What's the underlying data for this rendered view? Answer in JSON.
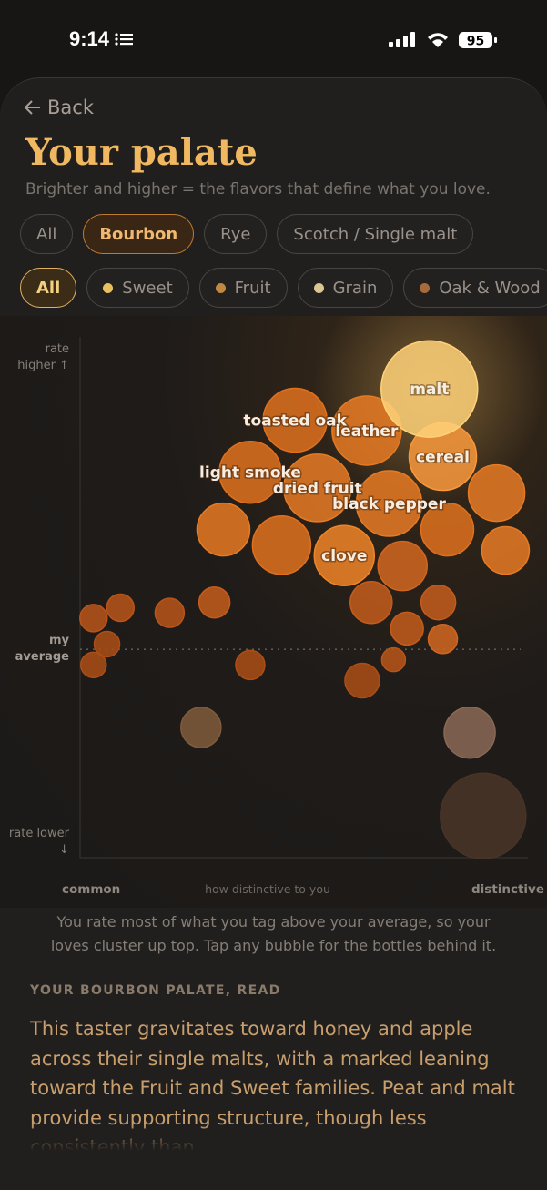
{
  "status_bar": {
    "time": "9:14",
    "battery": "95"
  },
  "header": {
    "back": "Back",
    "title": "Your palate",
    "subtitle": "Brighter and higher = the flavors that define what you love."
  },
  "filters": {
    "spirits": [
      {
        "label": "All"
      },
      {
        "label": "Bourbon",
        "active": true
      },
      {
        "label": "Rye"
      },
      {
        "label": "Scotch / Single malt"
      }
    ],
    "families": [
      {
        "label": "All",
        "active": true
      },
      {
        "label": "Sweet",
        "color": "#e8c060"
      },
      {
        "label": "Fruit",
        "color": "#c08840"
      },
      {
        "label": "Grain",
        "color": "#dcc494"
      },
      {
        "label": "Oak & Wood",
        "color": "#a86a3a"
      }
    ]
  },
  "chart_data": {
    "type": "bubble",
    "xlabel": "how distinctive to you",
    "xlim": [
      0,
      100
    ],
    "ylim": [
      0,
      100
    ],
    "xticks": [
      {
        "value": 0,
        "label": "common"
      },
      {
        "value": 100,
        "label": "distinctive"
      }
    ],
    "yticks": [
      {
        "value": 96,
        "label": "rate higher ↑"
      },
      {
        "value": 3,
        "label": "rate lower ↓"
      }
    ],
    "reference_line": {
      "value": 40,
      "label": "my average"
    },
    "points": [
      {
        "x": 90,
        "y": 8,
        "size": 47,
        "color": "#3a2a1f"
      },
      {
        "x": 87,
        "y": 24,
        "size": 28,
        "color": "#6e5444"
      },
      {
        "x": 27,
        "y": 25,
        "size": 22,
        "color": "#66492f"
      },
      {
        "x": 93,
        "y": 70,
        "size": 31,
        "color": "#b8621c"
      },
      {
        "x": 32,
        "y": 63,
        "size": 29,
        "color": "#b8621c"
      },
      {
        "x": 45,
        "y": 60,
        "size": 32,
        "color": "#b35a18"
      },
      {
        "x": 82,
        "y": 63,
        "size": 29,
        "color": "#b35a18"
      },
      {
        "x": 95,
        "y": 59,
        "size": 26,
        "color": "#b8621c"
      },
      {
        "x": 72,
        "y": 56,
        "size": 27,
        "color": "#a8521a"
      },
      {
        "x": 65,
        "y": 49,
        "size": 23,
        "color": "#9c4a16"
      },
      {
        "x": 80,
        "y": 49,
        "size": 19,
        "color": "#9c4a16"
      },
      {
        "x": 73,
        "y": 44,
        "size": 18,
        "color": "#9c4a16"
      },
      {
        "x": 81,
        "y": 42,
        "size": 16,
        "color": "#a8521a"
      },
      {
        "x": 70,
        "y": 38,
        "size": 13,
        "color": "#944414"
      },
      {
        "x": 63,
        "y": 34,
        "size": 19,
        "color": "#8a3e12"
      },
      {
        "x": 30,
        "y": 49,
        "size": 17,
        "color": "#9c4a16"
      },
      {
        "x": 20,
        "y": 47,
        "size": 16,
        "color": "#944414"
      },
      {
        "x": 9,
        "y": 48,
        "size": 15,
        "color": "#944414"
      },
      {
        "x": 3,
        "y": 46,
        "size": 15,
        "color": "#944414"
      },
      {
        "x": 6,
        "y": 41,
        "size": 14,
        "color": "#8a3e12"
      },
      {
        "x": 3,
        "y": 37,
        "size": 14,
        "color": "#8a3e12"
      },
      {
        "x": 38,
        "y": 37,
        "size": 16,
        "color": "#8a3e12"
      },
      {
        "x": 38,
        "y": 74,
        "size": 34,
        "color": "#b35a18",
        "label": "light smoke"
      },
      {
        "x": 48,
        "y": 84,
        "size": 35,
        "color": "#b35a18",
        "label": "toasted oak"
      },
      {
        "x": 53,
        "y": 71,
        "size": 37,
        "color": "#b8621c",
        "label": "dried fruit"
      },
      {
        "x": 69,
        "y": 68,
        "size": 36,
        "color": "#b8621c",
        "label": "black pepper"
      },
      {
        "x": 59,
        "y": 58,
        "size": 33,
        "color": "#c06a20",
        "label": "clove"
      },
      {
        "x": 64,
        "y": 82,
        "size": 38,
        "color": "#b8621c",
        "label": "leather"
      },
      {
        "x": 81,
        "y": 77,
        "size": 37,
        "color": "#c87a30",
        "label": "cereal"
      },
      {
        "x": 78,
        "y": 90,
        "size": 53,
        "color": "#d8a860",
        "label": "malt"
      }
    ]
  },
  "caption": "You rate most of what you tag above your average, so your loves cluster up top. Tap any bubble for the bottles behind it.",
  "section": {
    "heading": "YOUR BOURBON PALATE, READ",
    "body": "This taster gravitates toward honey and apple across their single malts, with a marked leaning toward the Fruit and Sweet families. Peat and malt provide supporting structure, though less consistently than"
  }
}
